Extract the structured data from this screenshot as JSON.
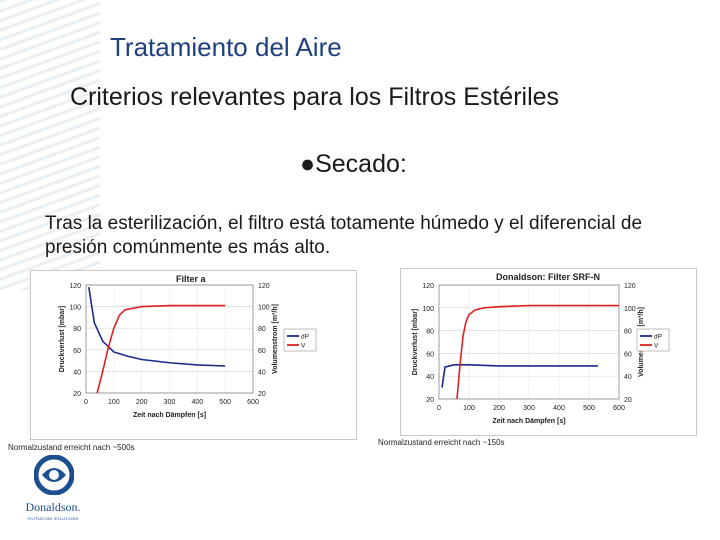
{
  "slide": {
    "title": "Tratamiento  del Aire",
    "subtitle": "Criterios relevantes para los Filtros Estériles",
    "bullet": "●Secado:",
    "paragraph": "Tras la esterilización, el filtro está totamente húmedo y el diferencial de presión comúnmente es más alto."
  },
  "captions": {
    "left": "Normalzustand erreicht nach ~500s",
    "right": "Normalzustand erreicht nach ~150s"
  },
  "logo": {
    "name": "Donaldson.",
    "tagline": "FILTRATION SOLUTIONS"
  },
  "colors": {
    "title": "#1f3f7f",
    "dp_series": "#1a2a8a",
    "v_series": "#e02020"
  },
  "chart_data": [
    {
      "type": "line",
      "title": "Filter a",
      "xlabel": "Zeit nach Dämpfen [s]",
      "ylabel_left": "Druckverlust [mbar]",
      "ylabel_right": "Volumenstrom [m³/h]",
      "xlim": [
        0,
        600
      ],
      "ylim_left": [
        20,
        120
      ],
      "ylim_right": [
        20,
        120
      ],
      "xticks": [
        "0",
        "100",
        "200",
        "300",
        "400",
        "500",
        "600"
      ],
      "yticks_left": [
        "20",
        "40",
        "60",
        "80",
        "100",
        "120"
      ],
      "yticks_right": [
        "20",
        "40",
        "60",
        "80",
        "100",
        "120"
      ],
      "legend": [
        "dP",
        "V"
      ],
      "legend_position": "right",
      "series": [
        {
          "name": "dP",
          "x": [
            10,
            30,
            60,
            100,
            150,
            200,
            300,
            400,
            500
          ],
          "y": [
            118,
            85,
            68,
            58,
            54,
            51,
            48,
            46,
            45
          ]
        },
        {
          "name": "V",
          "x": [
            40,
            60,
            80,
            100,
            120,
            140,
            160,
            180,
            200,
            300,
            400,
            500
          ],
          "y": [
            20,
            40,
            62,
            80,
            92,
            97,
            98,
            99,
            100,
            101,
            101,
            101
          ]
        }
      ]
    },
    {
      "type": "line",
      "title": "Donaldson: Filter SRF-N",
      "xlabel": "Zeit nach Dämpfen [s]",
      "ylabel_left": "Druckverlust [mbar]",
      "ylabel_right": "Volumenstrom [m³/h]",
      "xlim": [
        0,
        600
      ],
      "ylim_left": [
        20,
        120
      ],
      "ylim_right": [
        20,
        120
      ],
      "xticks": [
        "0",
        "100",
        "200",
        "300",
        "400",
        "500",
        "600"
      ],
      "yticks_left": [
        "20",
        "40",
        "60",
        "80",
        "100",
        "120"
      ],
      "yticks_right": [
        "20",
        "40",
        "60",
        "80",
        "100",
        "120"
      ],
      "legend": [
        "dP",
        "V"
      ],
      "legend_position": "right",
      "series": [
        {
          "name": "dP",
          "x": [
            10,
            20,
            50,
            100,
            200,
            300,
            400,
            500,
            530
          ],
          "y": [
            30,
            48,
            50,
            50,
            49,
            49,
            49,
            49,
            49
          ]
        },
        {
          "name": "V",
          "x": [
            60,
            70,
            80,
            90,
            100,
            120,
            150,
            200,
            300,
            400,
            500,
            600
          ],
          "y": [
            20,
            50,
            75,
            88,
            94,
            98,
            100,
            101,
            102,
            102,
            102,
            102
          ]
        }
      ]
    }
  ]
}
